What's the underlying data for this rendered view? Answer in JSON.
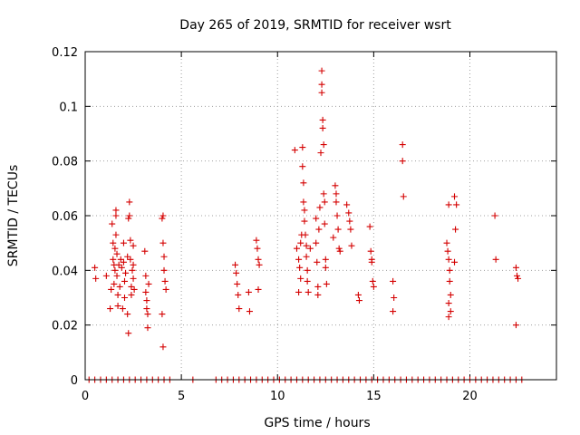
{
  "chart_data": {
    "type": "scatter",
    "title": "Day 265 of 2019, SRMTID for receiver wsrt",
    "xlabel": "GPS time / hours",
    "ylabel": "SRMTID / TECUs",
    "xlim": [
      0,
      24.5
    ],
    "ylim": [
      0,
      0.12
    ],
    "xticks": [
      0,
      5,
      10,
      15,
      20
    ],
    "yticks": [
      0,
      0.02,
      0.04,
      0.06,
      0.08,
      0.1,
      0.12
    ],
    "xtick_labels": [
      "0",
      "5",
      "10",
      "15",
      "20"
    ],
    "ytick_labels": [
      "0",
      "0.02",
      "0.04",
      "0.06",
      "0.08",
      "0.1",
      "0.12"
    ],
    "grid": true,
    "marker": "+",
    "color": "#d40000",
    "series": [
      {
        "name": "SRMTID",
        "points": [
          [
            0.5,
            0.041
          ],
          [
            0.55,
            0.037
          ],
          [
            1.1,
            0.038
          ],
          [
            1.3,
            0.026
          ],
          [
            1.35,
            0.033
          ],
          [
            1.4,
            0.057
          ],
          [
            1.45,
            0.05
          ],
          [
            1.45,
            0.044
          ],
          [
            1.5,
            0.042
          ],
          [
            1.5,
            0.035
          ],
          [
            1.55,
            0.048
          ],
          [
            1.55,
            0.04
          ],
          [
            1.6,
            0.062
          ],
          [
            1.6,
            0.06
          ],
          [
            1.6,
            0.053
          ],
          [
            1.65,
            0.046
          ],
          [
            1.65,
            0.038
          ],
          [
            1.7,
            0.031
          ],
          [
            1.7,
            0.027
          ],
          [
            1.75,
            0.042
          ],
          [
            1.8,
            0.034
          ],
          [
            1.85,
            0.044
          ],
          [
            1.9,
            0.041
          ],
          [
            1.95,
            0.026
          ],
          [
            2.0,
            0.05
          ],
          [
            2.0,
            0.043
          ],
          [
            2.05,
            0.036
          ],
          [
            2.05,
            0.03
          ],
          [
            2.1,
            0.039
          ],
          [
            2.2,
            0.045
          ],
          [
            2.2,
            0.024
          ],
          [
            2.25,
            0.017
          ],
          [
            2.3,
            0.065
          ],
          [
            2.3,
            0.06
          ],
          [
            2.35,
            0.051
          ],
          [
            2.35,
            0.044
          ],
          [
            2.4,
            0.034
          ],
          [
            2.4,
            0.031
          ],
          [
            2.45,
            0.04
          ],
          [
            2.5,
            0.049
          ],
          [
            2.5,
            0.042
          ],
          [
            2.5,
            0.037
          ],
          [
            2.55,
            0.033
          ],
          [
            2.25,
            0.059
          ],
          [
            3.1,
            0.047
          ],
          [
            3.15,
            0.038
          ],
          [
            3.15,
            0.032
          ],
          [
            3.2,
            0.029
          ],
          [
            3.2,
            0.026
          ],
          [
            3.25,
            0.024
          ],
          [
            3.25,
            0.019
          ],
          [
            3.3,
            0.035
          ],
          [
            4.0,
            0.059
          ],
          [
            4.05,
            0.06
          ],
          [
            4.05,
            0.05
          ],
          [
            4.1,
            0.045
          ],
          [
            4.1,
            0.04
          ],
          [
            4.15,
            0.036
          ],
          [
            4.2,
            0.033
          ],
          [
            4.0,
            0.024
          ],
          [
            4.05,
            0.012
          ],
          [
            7.8,
            0.042
          ],
          [
            7.85,
            0.039
          ],
          [
            7.9,
            0.035
          ],
          [
            7.95,
            0.031
          ],
          [
            8.0,
            0.026
          ],
          [
            8.5,
            0.032
          ],
          [
            8.55,
            0.025
          ],
          [
            8.9,
            0.051
          ],
          [
            8.95,
            0.048
          ],
          [
            9.0,
            0.044
          ],
          [
            9.05,
            0.042
          ],
          [
            9.0,
            0.033
          ],
          [
            10.9,
            0.084
          ],
          [
            11.0,
            0.048
          ],
          [
            11.1,
            0.044
          ],
          [
            11.15,
            0.041
          ],
          [
            11.2,
            0.05
          ],
          [
            11.2,
            0.037
          ],
          [
            11.25,
            0.053
          ],
          [
            11.3,
            0.085
          ],
          [
            11.3,
            0.078
          ],
          [
            11.35,
            0.072
          ],
          [
            11.35,
            0.065
          ],
          [
            11.4,
            0.062
          ],
          [
            11.4,
            0.058
          ],
          [
            11.45,
            0.053
          ],
          [
            11.5,
            0.049
          ],
          [
            11.5,
            0.045
          ],
          [
            11.55,
            0.04
          ],
          [
            11.55,
            0.036
          ],
          [
            11.6,
            0.032
          ],
          [
            11.1,
            0.032
          ],
          [
            11.7,
            0.048
          ],
          [
            12.0,
            0.059
          ],
          [
            12.0,
            0.05
          ],
          [
            12.05,
            0.043
          ],
          [
            12.1,
            0.034
          ],
          [
            12.1,
            0.031
          ],
          [
            12.15,
            0.055
          ],
          [
            12.2,
            0.063
          ],
          [
            12.25,
            0.083
          ],
          [
            12.3,
            0.113
          ],
          [
            12.3,
            0.108
          ],
          [
            12.3,
            0.105
          ],
          [
            12.35,
            0.095
          ],
          [
            12.35,
            0.092
          ],
          [
            12.4,
            0.086
          ],
          [
            12.4,
            0.068
          ],
          [
            12.45,
            0.065
          ],
          [
            12.45,
            0.057
          ],
          [
            12.5,
            0.044
          ],
          [
            12.5,
            0.041
          ],
          [
            12.55,
            0.035
          ],
          [
            12.9,
            0.052
          ],
          [
            13.0,
            0.071
          ],
          [
            13.05,
            0.068
          ],
          [
            13.05,
            0.065
          ],
          [
            13.1,
            0.06
          ],
          [
            13.15,
            0.055
          ],
          [
            13.2,
            0.048
          ],
          [
            13.25,
            0.047
          ],
          [
            13.6,
            0.064
          ],
          [
            13.7,
            0.061
          ],
          [
            13.75,
            0.058
          ],
          [
            13.8,
            0.055
          ],
          [
            13.85,
            0.049
          ],
          [
            14.2,
            0.031
          ],
          [
            14.25,
            0.029
          ],
          [
            14.8,
            0.056
          ],
          [
            14.85,
            0.047
          ],
          [
            14.9,
            0.044
          ],
          [
            14.9,
            0.043
          ],
          [
            14.95,
            0.036
          ],
          [
            15.0,
            0.034
          ],
          [
            16.0,
            0.036
          ],
          [
            16.05,
            0.03
          ],
          [
            16.0,
            0.025
          ],
          [
            16.5,
            0.086
          ],
          [
            16.5,
            0.08
          ],
          [
            16.55,
            0.067
          ],
          [
            18.8,
            0.05
          ],
          [
            18.85,
            0.047
          ],
          [
            18.9,
            0.044
          ],
          [
            18.95,
            0.04
          ],
          [
            18.95,
            0.036
          ],
          [
            19.0,
            0.031
          ],
          [
            18.9,
            0.028
          ],
          [
            19.0,
            0.025
          ],
          [
            18.9,
            0.023
          ],
          [
            18.9,
            0.064
          ],
          [
            19.2,
            0.067
          ],
          [
            19.3,
            0.064
          ],
          [
            19.25,
            0.055
          ],
          [
            19.2,
            0.043
          ],
          [
            21.3,
            0.06
          ],
          [
            21.35,
            0.044
          ],
          [
            22.4,
            0.041
          ],
          [
            22.45,
            0.038
          ],
          [
            22.5,
            0.037
          ],
          [
            22.4,
            0.02
          ],
          [
            0.2,
            0
          ],
          [
            0.5,
            0
          ],
          [
            0.8,
            0
          ],
          [
            1.1,
            0
          ],
          [
            1.4,
            0
          ],
          [
            1.7,
            0
          ],
          [
            2.0,
            0
          ],
          [
            2.3,
            0
          ],
          [
            2.6,
            0
          ],
          [
            2.9,
            0
          ],
          [
            3.2,
            0
          ],
          [
            3.5,
            0
          ],
          [
            3.8,
            0
          ],
          [
            4.1,
            0
          ],
          [
            4.4,
            0
          ],
          [
            5.6,
            0
          ],
          [
            6.8,
            0
          ],
          [
            7.1,
            0
          ],
          [
            7.4,
            0
          ],
          [
            7.7,
            0
          ],
          [
            8.0,
            0
          ],
          [
            8.3,
            0
          ],
          [
            8.6,
            0
          ],
          [
            8.9,
            0
          ],
          [
            9.2,
            0
          ],
          [
            9.5,
            0
          ],
          [
            9.8,
            0
          ],
          [
            10.1,
            0
          ],
          [
            10.4,
            0
          ],
          [
            10.7,
            0
          ],
          [
            11.0,
            0
          ],
          [
            11.3,
            0
          ],
          [
            11.6,
            0
          ],
          [
            11.9,
            0
          ],
          [
            12.2,
            0
          ],
          [
            12.5,
            0
          ],
          [
            12.8,
            0
          ],
          [
            13.1,
            0
          ],
          [
            13.4,
            0
          ],
          [
            13.7,
            0
          ],
          [
            14.0,
            0
          ],
          [
            14.3,
            0
          ],
          [
            14.6,
            0
          ],
          [
            14.9,
            0
          ],
          [
            15.2,
            0
          ],
          [
            15.5,
            0
          ],
          [
            15.8,
            0
          ],
          [
            16.1,
            0
          ],
          [
            16.4,
            0
          ],
          [
            16.7,
            0
          ],
          [
            17.0,
            0
          ],
          [
            17.3,
            0
          ],
          [
            17.6,
            0
          ],
          [
            17.9,
            0
          ],
          [
            18.2,
            0
          ],
          [
            18.5,
            0
          ],
          [
            18.8,
            0
          ],
          [
            19.1,
            0
          ],
          [
            19.4,
            0
          ],
          [
            19.7,
            0
          ],
          [
            20.0,
            0
          ],
          [
            20.3,
            0
          ],
          [
            20.6,
            0
          ],
          [
            20.9,
            0
          ],
          [
            21.2,
            0
          ],
          [
            21.5,
            0
          ],
          [
            21.8,
            0
          ],
          [
            22.1,
            0
          ],
          [
            22.4,
            0
          ],
          [
            22.7,
            0
          ]
        ]
      }
    ]
  }
}
